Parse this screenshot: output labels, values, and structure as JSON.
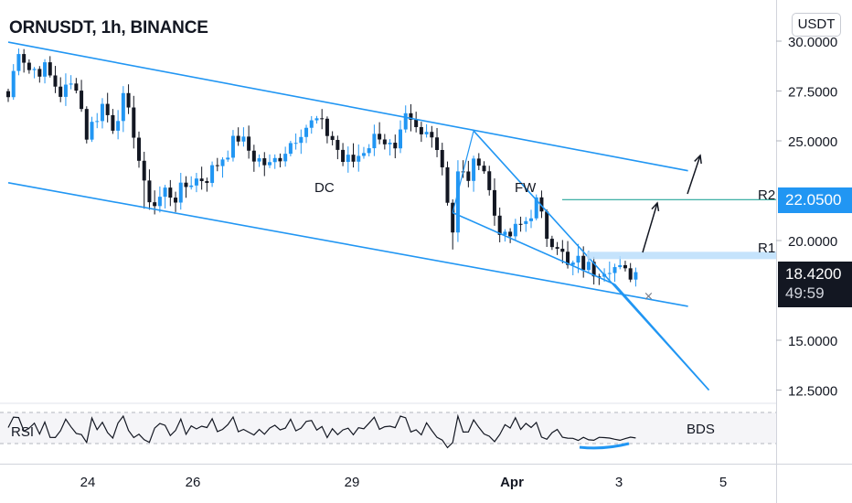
{
  "header": {
    "title": "ORNUSDT, 1h, BINANCE",
    "currency": "USDT"
  },
  "price_tags": {
    "r2_price": "22.0500",
    "last_price": "18.4200",
    "countdown": "49:59"
  },
  "annotations": {
    "dc": "DC",
    "fw": "FW",
    "r1": "R1",
    "r2": "R2",
    "rsi": "RSI",
    "bds": "BDS"
  },
  "colors": {
    "line_blue": "#2196f3",
    "up_candle": "#2196f3",
    "down_candle": "#131722",
    "tag_blue": "#2196f3",
    "tag_black": "#131722"
  },
  "chart_data": {
    "type": "candlestick",
    "symbol": "ORNUSDT",
    "interval": "1h",
    "exchange": "BINANCE",
    "y_axis": {
      "ticks": [
        30,
        27.5,
        25,
        20,
        15,
        12.5
      ],
      "tick_labels": [
        "30.0000",
        "27.5000",
        "25.0000",
        "20.0000",
        "15.0000",
        "12.5000"
      ],
      "range": [
        11.9,
        30.6
      ]
    },
    "x_axis": {
      "tick_labels": [
        "24",
        "26",
        "29",
        "Apr",
        "3",
        "5"
      ]
    },
    "candles": {
      "start_index": 0,
      "last_index": 120,
      "anchors": [
        [
          0,
          27.2
        ],
        [
          2,
          29.7
        ],
        [
          4,
          28.6
        ],
        [
          7,
          28.6
        ],
        [
          10,
          27.4
        ],
        [
          13,
          27.9
        ],
        [
          15,
          25.3
        ],
        [
          18,
          26.8
        ],
        [
          20,
          25.8
        ],
        [
          22,
          27.0
        ],
        [
          24,
          25.5
        ],
        [
          26,
          22.6
        ],
        [
          28,
          21.8
        ],
        [
          30,
          22.5
        ],
        [
          32,
          22.2
        ],
        [
          35,
          23.0
        ],
        [
          38,
          23.2
        ],
        [
          41,
          24.2
        ],
        [
          44,
          25.2
        ],
        [
          47,
          24.2
        ],
        [
          50,
          23.7
        ],
        [
          53,
          24.6
        ],
        [
          56,
          25.6
        ],
        [
          59,
          26.0
        ],
        [
          62,
          25.1
        ],
        [
          64,
          24.0
        ],
        [
          66,
          24.0
        ],
        [
          68,
          24.6
        ],
        [
          71,
          25.4
        ],
        [
          74,
          24.3
        ],
        [
          76,
          26.0
        ],
        [
          79,
          25.2
        ],
        [
          81,
          25.6
        ],
        [
          83,
          23.8
        ],
        [
          85,
          20.5
        ],
        [
          86,
          23.3
        ],
        [
          88,
          23.2
        ],
        [
          90,
          24.2
        ],
        [
          91,
          23.6
        ],
        [
          93,
          21.3
        ],
        [
          95,
          20.0
        ],
        [
          97,
          20.5
        ],
        [
          99,
          21.0
        ],
        [
          101,
          21.9
        ],
        [
          103,
          20.3
        ],
        [
          105,
          19.9
        ],
        [
          107,
          18.6
        ],
        [
          109,
          18.9
        ],
        [
          112,
          18.5
        ],
        [
          115,
          18.8
        ],
        [
          118,
          18.3
        ],
        [
          120,
          18.42
        ]
      ]
    },
    "lines": {
      "dc_upper": [
        [
          0,
          29.95
        ],
        [
          130,
          23.5
        ]
      ],
      "dc_lower": [
        [
          0,
          22.9
        ],
        [
          130,
          16.7
        ]
      ],
      "fw_upper": [
        [
          89,
          25.5
        ],
        [
          134,
          12.5
        ]
      ],
      "fw_lower": [
        [
          85,
          21.4
        ],
        [
          116,
          17.8
        ]
      ],
      "r2_level": 22.05,
      "r1_level": 19.25
    },
    "rsi": {
      "range": [
        25,
        75
      ],
      "upper_band": 70,
      "lower_band": 30
    }
  }
}
